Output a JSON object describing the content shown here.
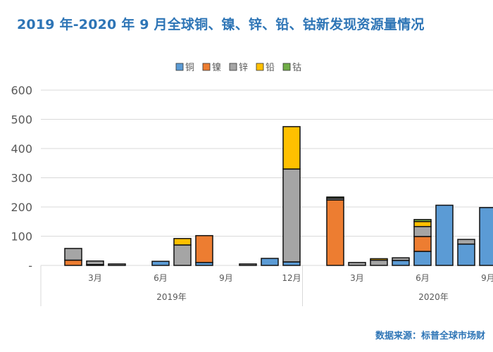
{
  "title": "2019 年-2020 年 9 月全球铜、镍、锌、铅、钴新发现资源量情况",
  "footer": "数据来源：标普全球市场财",
  "chart_data": {
    "type": "bar",
    "stacked": true,
    "title": "2019 年-2020 年 9 月全球铜、镍、锌、铅、钴新发现资源量情况",
    "ylim": [
      0,
      600
    ],
    "yticks": [
      0,
      100,
      200,
      300,
      400,
      500,
      600
    ],
    "ytick_labels": [
      "-",
      "100",
      "200",
      "300",
      "400",
      "500",
      "600"
    ],
    "grid": true,
    "legend_position": "top",
    "categories": [
      "2019-01",
      "2019-02",
      "2019-03",
      "2019-04",
      "2019-05",
      "2019-06",
      "2019-07",
      "2019-08",
      "2019-09",
      "2019-10",
      "2019-11",
      "2019-12",
      "2020-01",
      "2020-02",
      "2020-03",
      "2020-04",
      "2020-05",
      "2020-06",
      "2020-07",
      "2020-08",
      "2020-09"
    ],
    "month_labels": [
      {
        "index": 2,
        "label": "3月"
      },
      {
        "index": 5,
        "label": "6月"
      },
      {
        "index": 8,
        "label": "9月"
      },
      {
        "index": 11,
        "label": "12月"
      },
      {
        "index": 14,
        "label": "3月"
      },
      {
        "index": 17,
        "label": "6月"
      },
      {
        "index": 20,
        "label": "9月"
      }
    ],
    "year_labels": [
      {
        "from": 0,
        "to": 11,
        "label": "2019年"
      },
      {
        "from": 12,
        "to": 23,
        "label": "2020年"
      }
    ],
    "series": [
      {
        "name": "铜",
        "color": "#5B9BD5",
        "values": [
          0,
          0,
          3,
          0,
          0,
          14,
          0,
          10,
          0,
          0,
          24,
          12,
          0,
          0,
          0,
          0,
          17,
          48,
          206,
          73,
          198
        ]
      },
      {
        "name": "镍",
        "color": "#ED7D31",
        "values": [
          0,
          18,
          0,
          0,
          0,
          0,
          0,
          92,
          0,
          0,
          0,
          0,
          0,
          224,
          0,
          0,
          0,
          51,
          0,
          0,
          0
        ]
      },
      {
        "name": "锌",
        "color": "#A5A5A5",
        "values": [
          0,
          40,
          12,
          5,
          0,
          0,
          70,
          0,
          0,
          5,
          0,
          318,
          0,
          6,
          10,
          18,
          9,
          34,
          0,
          16,
          0
        ]
      },
      {
        "name": "铅",
        "color": "#FFC000",
        "values": [
          0,
          0,
          0,
          0,
          0,
          0,
          22,
          0,
          0,
          0,
          0,
          145,
          0,
          0,
          0,
          5,
          0,
          17,
          0,
          0,
          0
        ]
      },
      {
        "name": "钴",
        "color": "#70AD47",
        "values": [
          0,
          0,
          0,
          0,
          0,
          0,
          0,
          0,
          0,
          0,
          0,
          0,
          0,
          4,
          0,
          0,
          0,
          7,
          0,
          0,
          0
        ]
      }
    ]
  }
}
